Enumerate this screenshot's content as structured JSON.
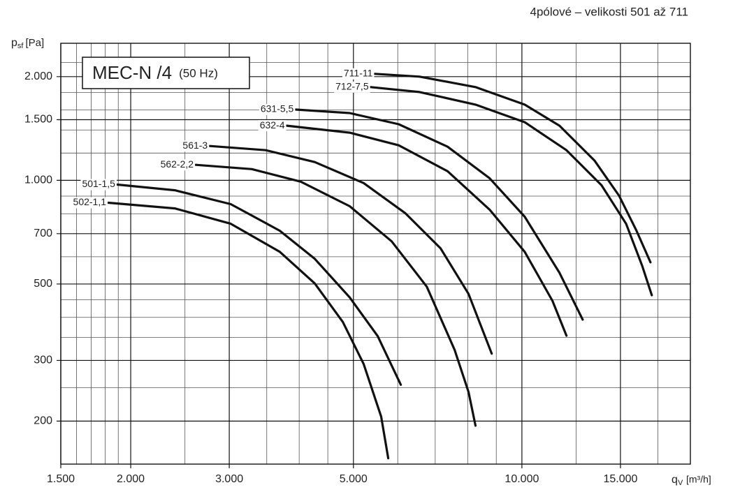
{
  "chart_data": {
    "type": "line",
    "title": "MEC-N /4",
    "title_note": "(50 Hz)",
    "subtitle": "4pólové – velikosti 501 až 711",
    "y_label": {
      "symbol": "p",
      "subscript": "sf",
      "unit": "[Pa]"
    },
    "x_label": {
      "symbol": "q",
      "subscript": "V",
      "unit": "[m³/h]"
    },
    "xscale": "log",
    "yscale": "log",
    "grid": true,
    "xlim": [
      1500,
      20000
    ],
    "ylim": [
      150,
      2500
    ],
    "xticks": [
      {
        "value": 1500,
        "label": "1.500"
      },
      {
        "value": 2000,
        "label": "2.000"
      },
      {
        "value": 3000,
        "label": "3.000"
      },
      {
        "value": 5000,
        "label": "5.000"
      },
      {
        "value": 10000,
        "label": "10.000"
      },
      {
        "value": 15000,
        "label": "15.000"
      }
    ],
    "yticks": [
      200,
      300,
      500,
      700,
      {
        "value": 1000,
        "label": "1.000"
      },
      {
        "value": 1500,
        "label": "1.500"
      },
      {
        "value": 2000,
        "label": "2.000"
      }
    ],
    "x_minor_grid": [
      1600,
      1700,
      1800,
      1900,
      2500,
      3500,
      4000,
      4500,
      6000,
      7000,
      8000,
      9000,
      12500,
      17500,
      20000
    ],
    "y_minor_grid": [
      150,
      250,
      350,
      400,
      450,
      600,
      800,
      900,
      1200,
      1400,
      1600,
      1800,
      2200,
      2500
    ],
    "series": [
      {
        "name": "501-1,5",
        "color": "#111111",
        "x": [
          1893,
          2398,
          3018,
          3693,
          4264,
          4925,
          5525,
          6076
        ],
        "values": [
          972,
          936,
          853,
          714,
          592,
          457,
          353,
          255
        ]
      },
      {
        "name": "502-1,1",
        "color": "#111111",
        "x": [
          1824,
          2398,
          3018,
          3693,
          4264,
          4786,
          5215,
          5604,
          5769
        ],
        "values": [
          861,
          829,
          748,
          620,
          502,
          388,
          293,
          206,
          156
        ]
      },
      {
        "name": "561-3",
        "color": "#111111",
        "x": [
          2769,
          3487,
          4264,
          5215,
          6195,
          7155,
          8028,
          8832
        ],
        "values": [
          1258,
          1223,
          1130,
          982,
          802,
          635,
          468,
          314
        ]
      },
      {
        "name": "562-2,2",
        "color": "#111111",
        "x": [
          2613,
          3291,
          4026,
          4925,
          5852,
          6762,
          7582,
          8028,
          8262
        ],
        "values": [
          1109,
          1078,
          991,
          841,
          665,
          491,
          322,
          243,
          194
        ]
      },
      {
        "name": "631-5,5",
        "color": "#111111",
        "x": [
          3945,
          4925,
          6024,
          7365,
          8756,
          10117,
          11672,
          12842
        ],
        "values": [
          1605,
          1568,
          1455,
          1252,
          1014,
          784,
          539,
          394
        ]
      },
      {
        "name": "632-4",
        "color": "#111111",
        "x": [
          3802,
          4925,
          6024,
          7365,
          8756,
          10117,
          11340,
          12015
        ],
        "values": [
          1441,
          1375,
          1264,
          1063,
          822,
          620,
          447,
          354
        ]
      },
      {
        "name": "711-11",
        "color": "#111111",
        "x": [
          5460,
          6563,
          8262,
          10117,
          11672,
          13488,
          14915,
          16023,
          16970
        ],
        "values": [
          2038,
          2000,
          1865,
          1659,
          1441,
          1140,
          902,
          714,
          578
        ]
      },
      {
        "name": "712-7,5",
        "color": "#111111",
        "x": [
          5370,
          6563,
          8262,
          10117,
          12015,
          13874,
          15350,
          16400,
          17064
        ],
        "values": [
          1865,
          1804,
          1659,
          1475,
          1223,
          968,
          748,
          565,
          464
        ]
      }
    ]
  }
}
